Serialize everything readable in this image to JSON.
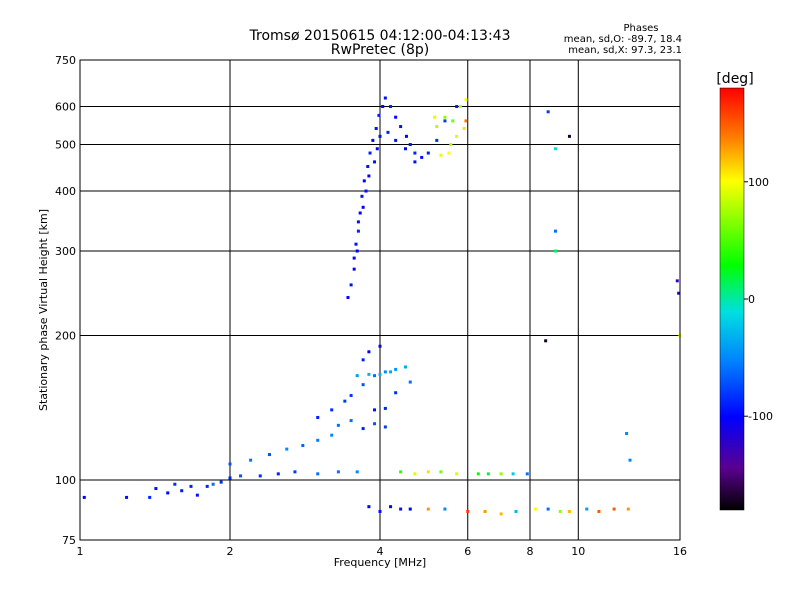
{
  "chart_data": {
    "type": "scatter",
    "title": "Tromsø 20150615 04:12:00-04:13:43",
    "subtitle": "RwPretec (8p)",
    "xlabel": "Frequency [MHz]",
    "ylabel": "Stationary phase Virtual Height [km]",
    "x_scale": "log",
    "y_scale": "log",
    "xlim": [
      1,
      16
    ],
    "ylim": [
      75,
      750
    ],
    "x_ticks": [
      1,
      2,
      4,
      6,
      8,
      10,
      16
    ],
    "y_ticks": [
      75,
      100,
      200,
      300,
      400,
      500,
      600,
      750
    ],
    "grid": true,
    "stats": {
      "heading": "Phases",
      "line_o": "mean, sd,O: -89.7, 18.4",
      "line_x": "mean, sd,X:  97.3, 23.1"
    },
    "colorbar": {
      "label": "[deg]",
      "range": [
        -180,
        180
      ],
      "ticks": [
        100,
        0,
        -100
      ],
      "colormap": "rainbow (black → purple → blue → cyan → green → yellow → red)"
    },
    "points": [
      [
        1.02,
        92,
        -100
      ],
      [
        1.24,
        92,
        -95
      ],
      [
        1.38,
        92,
        -88
      ],
      [
        1.42,
        96,
        -95
      ],
      [
        1.5,
        94,
        -100
      ],
      [
        1.55,
        98,
        -85
      ],
      [
        1.6,
        95,
        -92
      ],
      [
        1.67,
        97,
        -90
      ],
      [
        1.72,
        93,
        -95
      ],
      [
        1.8,
        97,
        -88
      ],
      [
        1.85,
        98,
        -60
      ],
      [
        1.92,
        99,
        -85
      ],
      [
        2.0,
        101,
        -90
      ],
      [
        2.1,
        102,
        -70
      ],
      [
        2.3,
        102,
        -85
      ],
      [
        2.5,
        103,
        -90
      ],
      [
        2.7,
        104,
        -80
      ],
      [
        3.0,
        103,
        -60
      ],
      [
        3.3,
        104,
        -60
      ],
      [
        3.6,
        104,
        -50
      ],
      [
        2.0,
        108,
        -70
      ],
      [
        2.2,
        110,
        -60
      ],
      [
        2.4,
        113,
        -70
      ],
      [
        2.6,
        116,
        -50
      ],
      [
        2.8,
        118,
        -65
      ],
      [
        3.0,
        121,
        -55
      ],
      [
        3.2,
        124,
        -50
      ],
      [
        3.3,
        130,
        -60
      ],
      [
        3.5,
        133,
        -60
      ],
      [
        3.7,
        128,
        -90
      ],
      [
        3.9,
        131,
        -70
      ],
      [
        4.1,
        129,
        -80
      ],
      [
        3.0,
        135,
        -90
      ],
      [
        3.2,
        140,
        -85
      ],
      [
        3.4,
        146,
        -80
      ],
      [
        3.5,
        150,
        -80
      ],
      [
        3.7,
        158,
        -70
      ],
      [
        3.9,
        165,
        -60
      ],
      [
        4.1,
        168,
        -50
      ],
      [
        4.3,
        170,
        -45
      ],
      [
        4.5,
        172,
        -35
      ],
      [
        3.6,
        165,
        -40
      ],
      [
        3.8,
        166,
        -30
      ],
      [
        4.0,
        166,
        -30
      ],
      [
        4.2,
        168,
        -35
      ],
      [
        3.9,
        140,
        -95
      ],
      [
        4.1,
        141,
        -90
      ],
      [
        4.3,
        152,
        -85
      ],
      [
        4.6,
        160,
        -60
      ],
      [
        3.7,
        178,
        -90
      ],
      [
        3.8,
        185,
        -100
      ],
      [
        4.0,
        190,
        -110
      ],
      [
        3.8,
        88,
        -100
      ],
      [
        4.0,
        86,
        -95
      ],
      [
        4.2,
        88,
        -100
      ],
      [
        4.4,
        87,
        -95
      ],
      [
        4.6,
        87,
        -100
      ],
      [
        4.4,
        104,
        40
      ],
      [
        4.7,
        103,
        90
      ],
      [
        5.0,
        104,
        110
      ],
      [
        5.3,
        104,
        60
      ],
      [
        5.7,
        103,
        90
      ],
      [
        6.3,
        103,
        30
      ],
      [
        6.6,
        103,
        20
      ],
      [
        7.0,
        103,
        70
      ],
      [
        7.4,
        103,
        -20
      ],
      [
        7.9,
        103,
        -60
      ],
      [
        5.0,
        87,
        130
      ],
      [
        5.4,
        87,
        -50
      ],
      [
        6.0,
        86,
        160
      ],
      [
        6.5,
        86,
        130
      ],
      [
        7.0,
        85,
        120
      ],
      [
        7.5,
        86,
        -30
      ],
      [
        8.2,
        87,
        100
      ],
      [
        8.7,
        87,
        -60
      ],
      [
        9.2,
        86,
        70
      ],
      [
        9.6,
        86,
        120
      ],
      [
        10.4,
        87,
        -40
      ],
      [
        11.0,
        86,
        150
      ],
      [
        11.8,
        87,
        150
      ],
      [
        12.6,
        87,
        130
      ],
      [
        3.45,
        240,
        -100
      ],
      [
        3.5,
        255,
        -95
      ],
      [
        3.55,
        275,
        -105
      ],
      [
        3.6,
        300,
        -100
      ],
      [
        3.62,
        330,
        -90
      ],
      [
        3.65,
        360,
        -100
      ],
      [
        3.68,
        390,
        -95
      ],
      [
        3.72,
        420,
        -100
      ],
      [
        3.78,
        450,
        -95
      ],
      [
        3.82,
        480,
        -90
      ],
      [
        3.87,
        510,
        -100
      ],
      [
        3.93,
        540,
        -95
      ],
      [
        3.98,
        575,
        -90
      ],
      [
        4.05,
        600,
        -100
      ],
      [
        4.1,
        625,
        -95
      ],
      [
        4.2,
        600,
        -90
      ],
      [
        4.3,
        570,
        -100
      ],
      [
        4.4,
        545,
        -95
      ],
      [
        4.52,
        520,
        -100
      ],
      [
        4.6,
        500,
        -95
      ],
      [
        4.7,
        480,
        -90
      ],
      [
        4.85,
        470,
        -95
      ],
      [
        5.0,
        480,
        -90
      ],
      [
        5.2,
        510,
        -85
      ],
      [
        5.4,
        560,
        -80
      ],
      [
        5.7,
        600,
        -90
      ],
      [
        3.55,
        290,
        -105
      ],
      [
        3.58,
        310,
        -95
      ],
      [
        3.62,
        345,
        -95
      ],
      [
        3.7,
        370,
        -100
      ],
      [
        3.75,
        400,
        -95
      ],
      [
        3.8,
        430,
        -100
      ],
      [
        3.9,
        460,
        -95
      ],
      [
        3.95,
        490,
        -100
      ],
      [
        4.0,
        520,
        -95
      ],
      [
        4.15,
        530,
        -90
      ],
      [
        4.3,
        510,
        -95
      ],
      [
        4.5,
        490,
        -100
      ],
      [
        4.7,
        460,
        -95
      ],
      [
        5.4,
        570,
        70
      ],
      [
        5.6,
        560,
        60
      ],
      [
        5.8,
        600,
        80
      ],
      [
        5.95,
        620,
        100
      ],
      [
        5.95,
        560,
        140
      ],
      [
        5.9,
        540,
        110
      ],
      [
        5.7,
        520,
        90
      ],
      [
        5.5,
        480,
        100
      ],
      [
        5.3,
        475,
        95
      ],
      [
        5.55,
        500,
        85
      ],
      [
        5.2,
        545,
        80
      ],
      [
        5.15,
        570,
        90
      ],
      [
        8.6,
        195,
        -170
      ],
      [
        8.7,
        585,
        -80
      ],
      [
        9.0,
        330,
        -60
      ],
      [
        9.0,
        300,
        10
      ],
      [
        9.0,
        490,
        -10
      ],
      [
        9.6,
        520,
        -170
      ],
      [
        12.7,
        110,
        -50
      ],
      [
        12.5,
        125,
        -50
      ],
      [
        15.8,
        260,
        -130
      ],
      [
        15.9,
        245,
        -120
      ],
      [
        16.0,
        200,
        100
      ]
    ]
  }
}
